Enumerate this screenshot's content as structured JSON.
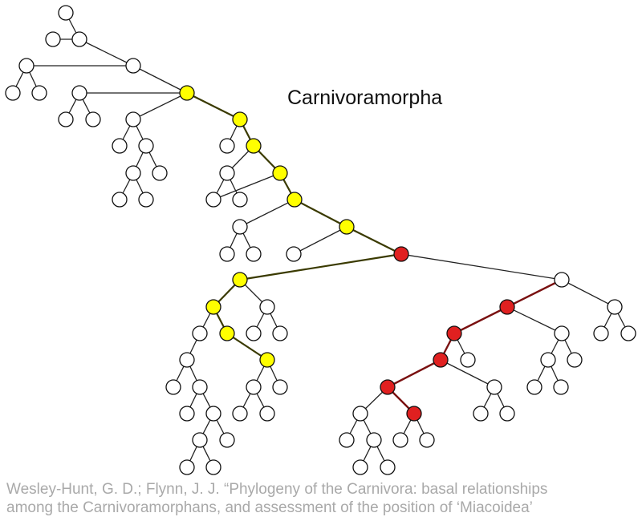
{
  "clade_label": "Carnivoramorpha",
  "citation": {
    "line1": "Wesley-Hunt, G. D.; Flynn, J. J. “Phylogeny of the Carnivora: basal relationships",
    "line2": "among the Carnivoramorphans, and assessment of the position of ‘Miacoidea’"
  },
  "colors": {
    "default": "#ffffff",
    "yellow": "#ffff00",
    "red": "#e02020"
  }
}
